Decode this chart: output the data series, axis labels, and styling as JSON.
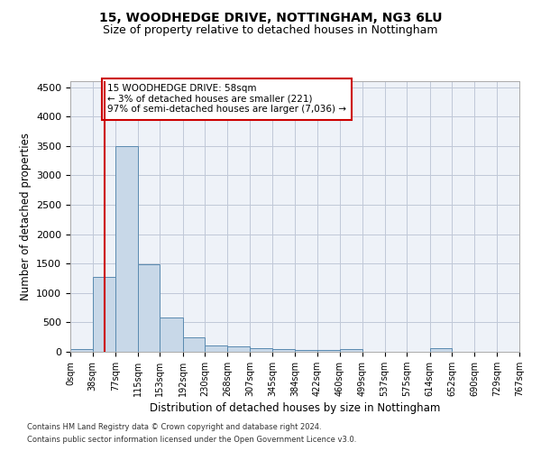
{
  "title1": "15, WOODHEDGE DRIVE, NOTTINGHAM, NG3 6LU",
  "title2": "Size of property relative to detached houses in Nottingham",
  "xlabel": "Distribution of detached houses by size in Nottingham",
  "ylabel": "Number of detached properties",
  "bin_edges": [
    0,
    38,
    77,
    115,
    153,
    192,
    230,
    268,
    307,
    345,
    384,
    422,
    460,
    499,
    537,
    575,
    614,
    652,
    690,
    729,
    767
  ],
  "bar_heights": [
    40,
    1280,
    3500,
    1480,
    580,
    240,
    115,
    90,
    55,
    40,
    35,
    35,
    50,
    0,
    0,
    0,
    55,
    0,
    0,
    0
  ],
  "bar_color": "#c8d8e8",
  "bar_edge_color": "#5a8ab0",
  "property_size": 58,
  "vline_color": "#cc0000",
  "ylim": [
    0,
    4600
  ],
  "yticks": [
    0,
    500,
    1000,
    1500,
    2000,
    2500,
    3000,
    3500,
    4000,
    4500
  ],
  "annotation_title": "15 WOODHEDGE DRIVE: 58sqm",
  "annotation_line1": "← 3% of detached houses are smaller (221)",
  "annotation_line2": "97% of semi-detached houses are larger (7,036) →",
  "annotation_box_color": "#ffffff",
  "annotation_border_color": "#cc0000",
  "grid_color": "#c0c8d8",
  "bg_color": "#eef2f8",
  "footer1": "Contains HM Land Registry data © Crown copyright and database right 2024.",
  "footer2": "Contains public sector information licensed under the Open Government Licence v3.0."
}
